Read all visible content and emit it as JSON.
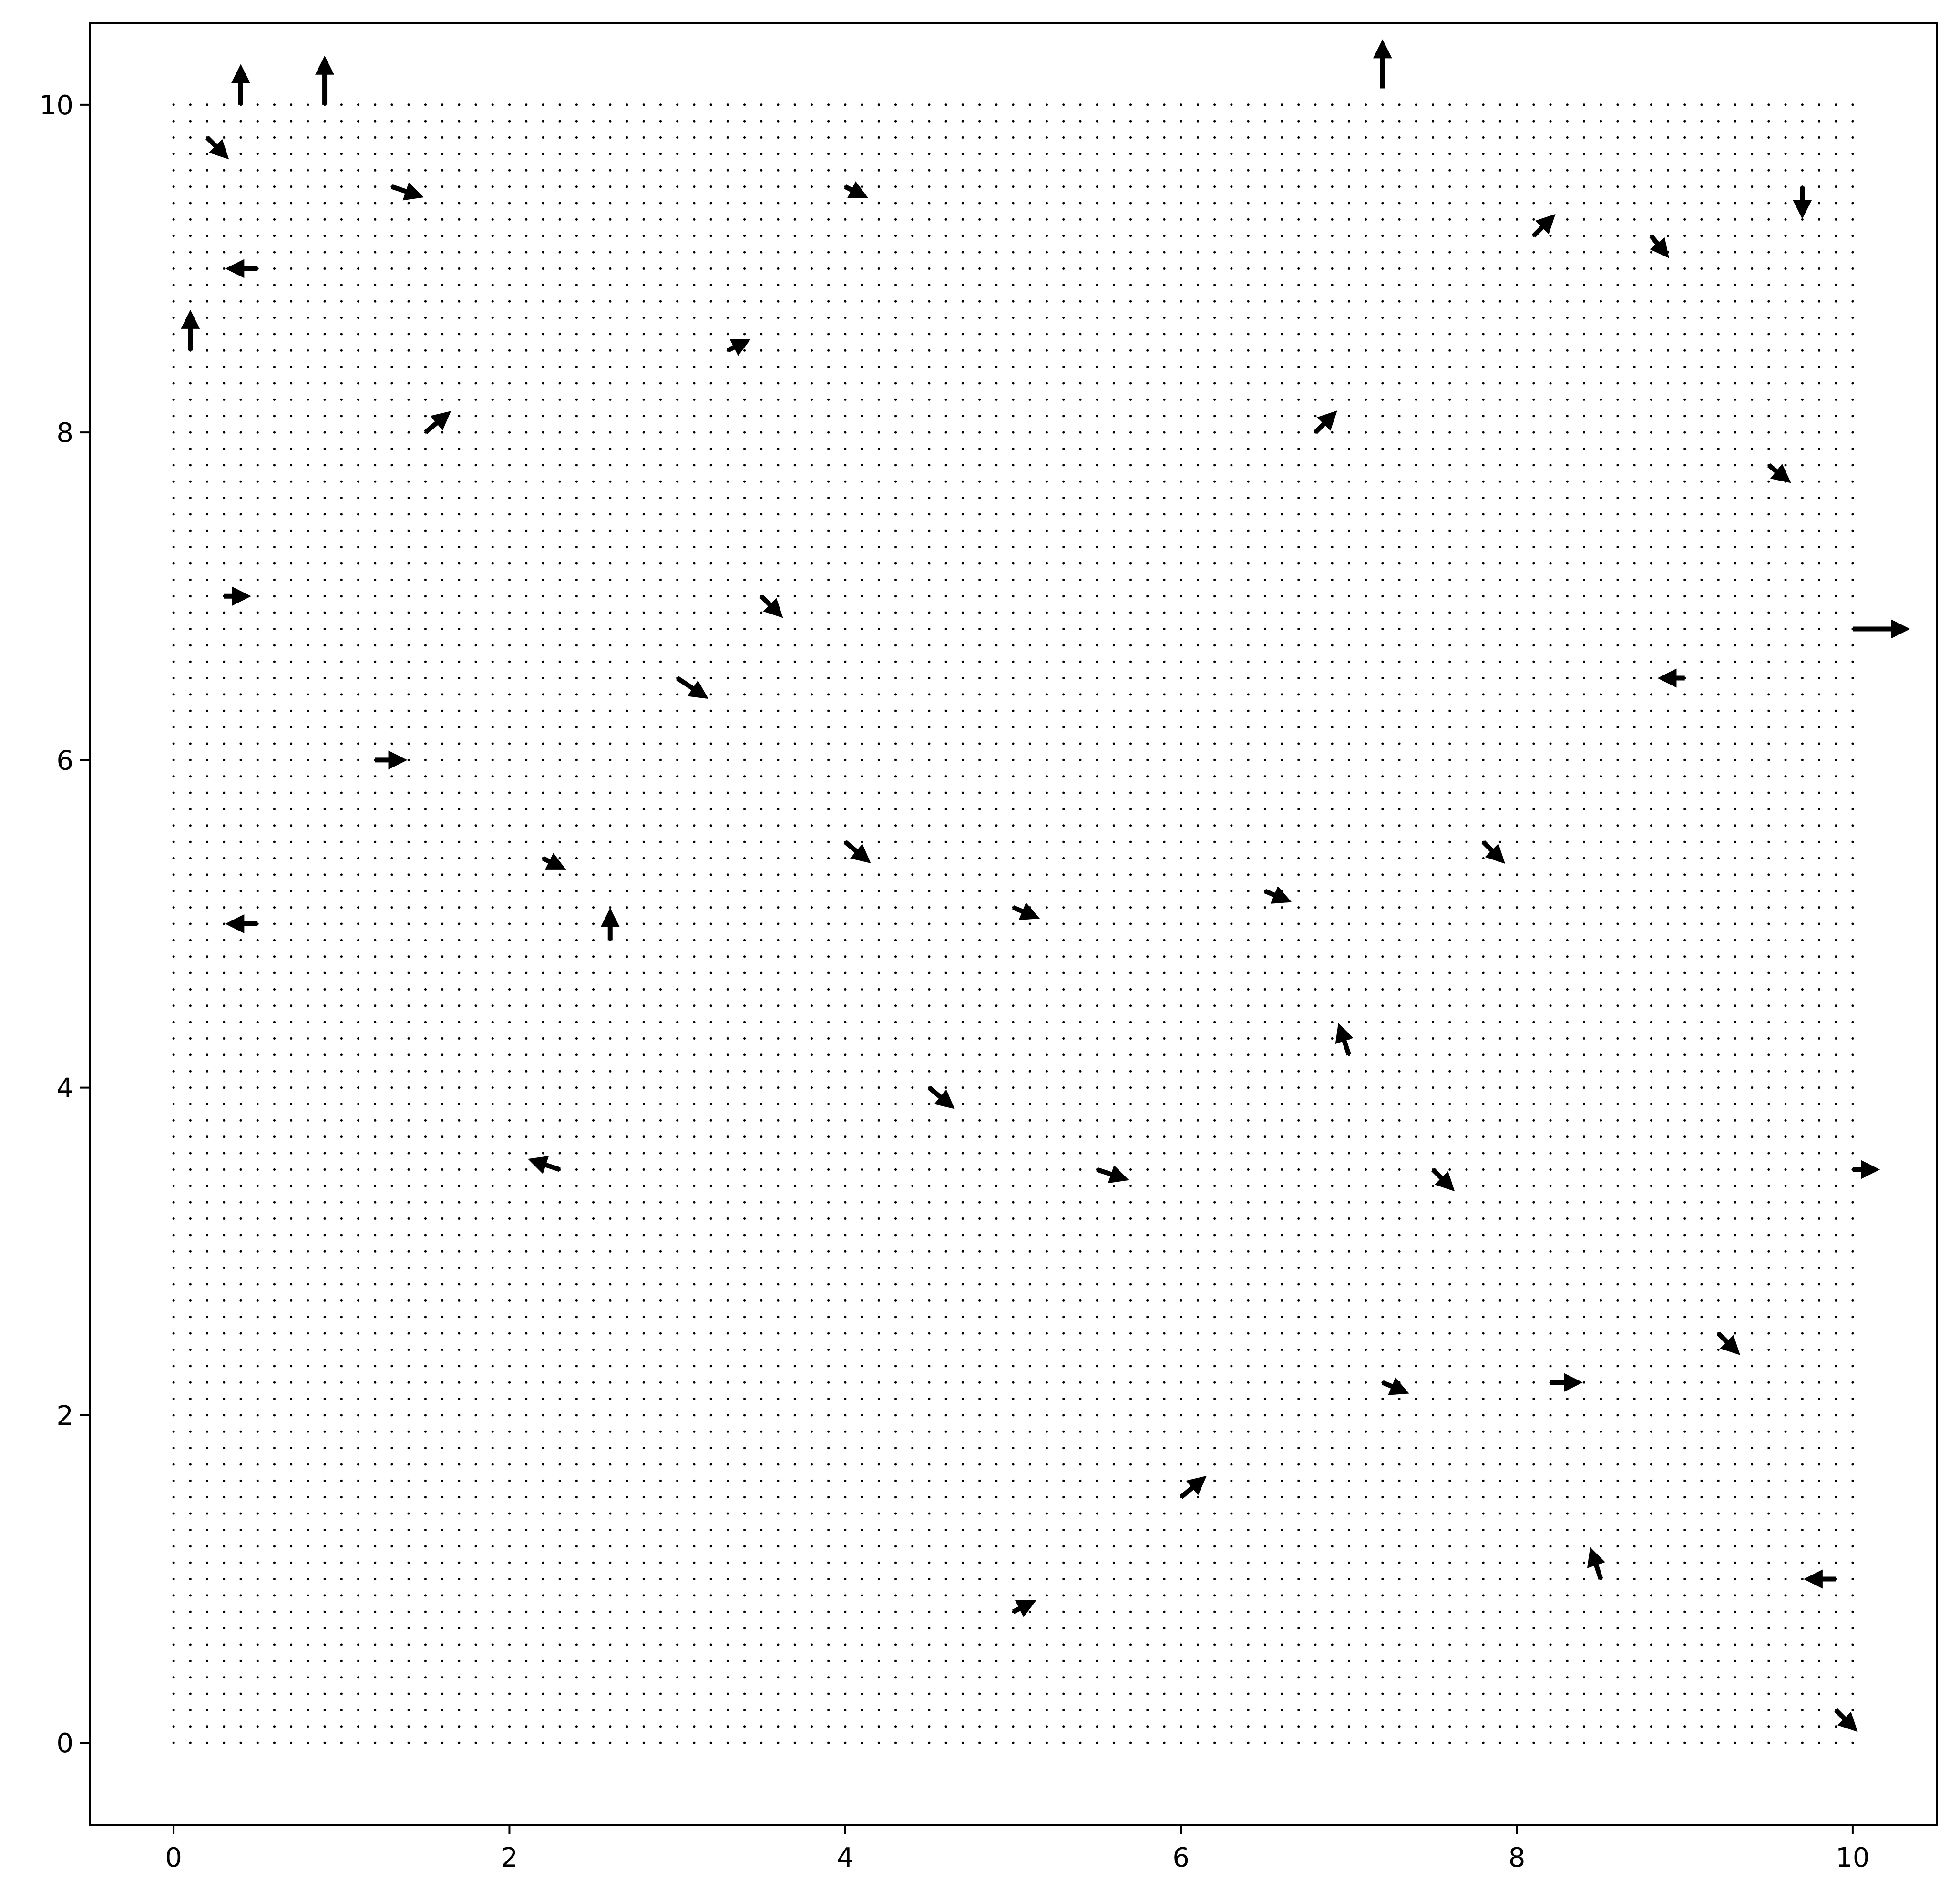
{
  "chart_data": {
    "type": "quiver",
    "title": "",
    "xlabel": "",
    "ylabel": "",
    "xlim": [
      -0.5,
      10.5
    ],
    "ylim": [
      -0.5,
      10.5
    ],
    "xticks": [
      0,
      2,
      4,
      6,
      8,
      10
    ],
    "yticks": [
      0,
      2,
      4,
      6,
      8,
      10
    ],
    "xtick_labels": [
      "0",
      "2",
      "4",
      "6",
      "8",
      "10"
    ],
    "ytick_labels": [
      "0",
      "2",
      "4",
      "6",
      "8",
      "10"
    ],
    "grid": false,
    "arrow_color": "#000000",
    "sample_grid": {
      "x_start": 0,
      "x_end": 10,
      "x_count": 101,
      "y_start": 0,
      "y_end": 10,
      "y_count": 101
    },
    "field_description": "Vector field on a 0-10 grid sampled every 0.1 units; arrows concentrate along ribbon-like streaks with magnitude up to ~0.3 units.",
    "series": [
      {
        "name": "",
        "vectors": [
          {
            "x": 0.1,
            "y": 8.5,
            "u": 0.0,
            "v": 0.2
          },
          {
            "x": 0.2,
            "y": 9.8,
            "u": 0.1,
            "v": -0.1
          },
          {
            "x": 0.3,
            "y": 7.0,
            "u": 0.12,
            "v": 0.0
          },
          {
            "x": 0.4,
            "y": 10.0,
            "u": 0.0,
            "v": 0.2
          },
          {
            "x": 0.5,
            "y": 5.0,
            "u": -0.15,
            "v": 0.0
          },
          {
            "x": 0.5,
            "y": 9.0,
            "u": -0.15,
            "v": 0.0
          },
          {
            "x": 0.9,
            "y": 10.0,
            "u": 0.0,
            "v": 0.25
          },
          {
            "x": 1.2,
            "y": 6.0,
            "u": 0.15,
            "v": 0.0
          },
          {
            "x": 1.3,
            "y": 9.5,
            "u": 0.15,
            "v": -0.05
          },
          {
            "x": 1.5,
            "y": 8.0,
            "u": 0.12,
            "v": 0.1
          },
          {
            "x": 2.2,
            "y": 5.4,
            "u": 0.1,
            "v": -0.05
          },
          {
            "x": 2.3,
            "y": 3.5,
            "u": -0.15,
            "v": 0.05
          },
          {
            "x": 2.6,
            "y": 4.9,
            "u": 0.0,
            "v": 0.15
          },
          {
            "x": 3.0,
            "y": 6.5,
            "u": 0.15,
            "v": -0.1
          },
          {
            "x": 3.3,
            "y": 8.5,
            "u": 0.1,
            "v": 0.05
          },
          {
            "x": 3.5,
            "y": 7.0,
            "u": 0.1,
            "v": -0.1
          },
          {
            "x": 4.0,
            "y": 9.5,
            "u": 0.1,
            "v": -0.05
          },
          {
            "x": 4.0,
            "y": 5.5,
            "u": 0.12,
            "v": -0.1
          },
          {
            "x": 4.5,
            "y": 4.0,
            "u": 0.12,
            "v": -0.1
          },
          {
            "x": 5.0,
            "y": 5.1,
            "u": 0.12,
            "v": -0.05
          },
          {
            "x": 5.5,
            "y": 3.5,
            "u": 0.15,
            "v": -0.05
          },
          {
            "x": 5.0,
            "y": 0.8,
            "u": 0.1,
            "v": 0.05
          },
          {
            "x": 6.0,
            "y": 1.5,
            "u": 0.12,
            "v": 0.1
          },
          {
            "x": 6.5,
            "y": 5.2,
            "u": 0.12,
            "v": -0.05
          },
          {
            "x": 6.8,
            "y": 8.0,
            "u": 0.1,
            "v": 0.1
          },
          {
            "x": 7.0,
            "y": 4.2,
            "u": -0.05,
            "v": 0.15
          },
          {
            "x": 7.2,
            "y": 10.1,
            "u": 0.0,
            "v": 0.25
          },
          {
            "x": 7.2,
            "y": 2.2,
            "u": 0.12,
            "v": -0.05
          },
          {
            "x": 7.5,
            "y": 3.5,
            "u": 0.1,
            "v": -0.1
          },
          {
            "x": 7.8,
            "y": 5.5,
            "u": 0.1,
            "v": -0.1
          },
          {
            "x": 8.1,
            "y": 9.2,
            "u": 0.1,
            "v": 0.1
          },
          {
            "x": 8.2,
            "y": 2.2,
            "u": 0.15,
            "v": 0.0
          },
          {
            "x": 8.5,
            "y": 1.0,
            "u": -0.05,
            "v": 0.15
          },
          {
            "x": 8.8,
            "y": 9.2,
            "u": 0.08,
            "v": -0.1
          },
          {
            "x": 9.0,
            "y": 6.5,
            "u": -0.12,
            "v": 0.0
          },
          {
            "x": 9.2,
            "y": 2.5,
            "u": 0.1,
            "v": -0.1
          },
          {
            "x": 9.5,
            "y": 7.8,
            "u": 0.1,
            "v": -0.08
          },
          {
            "x": 9.7,
            "y": 9.5,
            "u": 0.0,
            "v": -0.15
          },
          {
            "x": 10.0,
            "y": 6.8,
            "u": 0.3,
            "v": 0.0
          },
          {
            "x": 10.0,
            "y": 3.5,
            "u": 0.12,
            "v": 0.0
          },
          {
            "x": 9.9,
            "y": 1.0,
            "u": -0.15,
            "v": 0.0
          },
          {
            "x": 9.9,
            "y": 0.2,
            "u": 0.1,
            "v": -0.1
          }
        ]
      }
    ]
  }
}
